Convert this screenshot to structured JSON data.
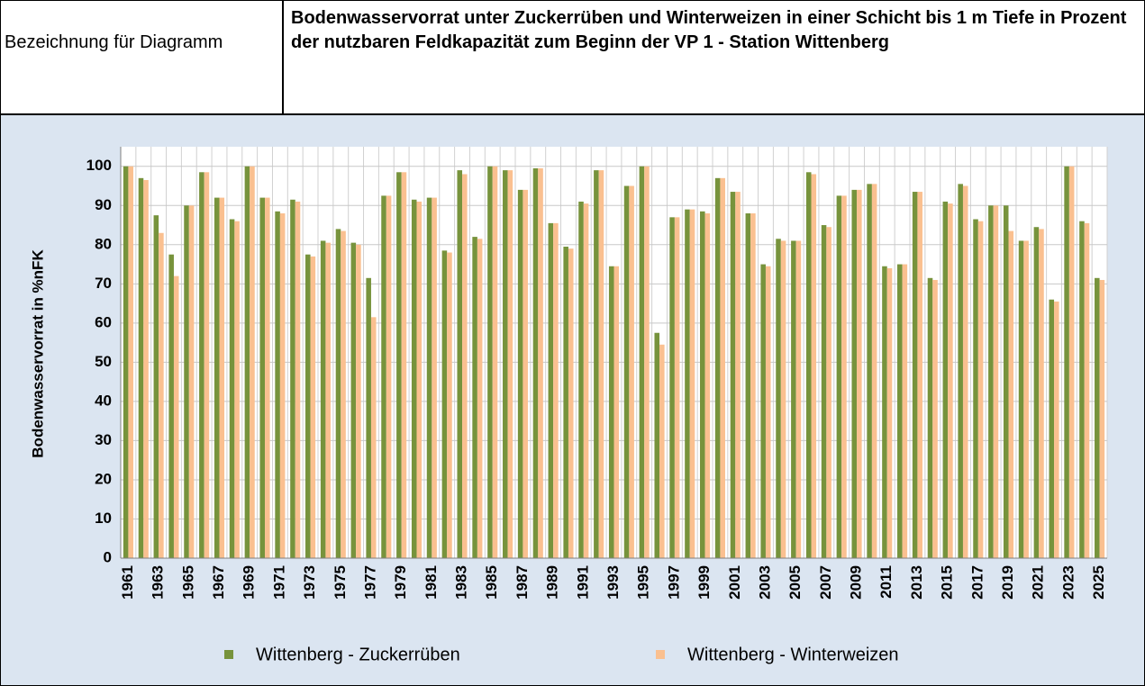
{
  "header": {
    "label": "Bezeichnung für Diagramm",
    "title": "Bodenwasservorrat unter Zuckerrüben und Winterweizen in einer Schicht bis 1 m Tiefe in Prozent der nutzbaren Feldkapazität zum Beginn der VP 1 - Station Wittenberg"
  },
  "chart_data": {
    "type": "bar",
    "y_label": "Bodenwasservorrat in %nFK",
    "categories": [
      "1961",
      null,
      "1963",
      null,
      "1965",
      null,
      "1967",
      null,
      "1969",
      null,
      "1971",
      null,
      "1973",
      null,
      "1975",
      null,
      "1977",
      null,
      "1979",
      null,
      "1981",
      null,
      "1983",
      null,
      "1985",
      null,
      "1987",
      null,
      "1989",
      null,
      "1991",
      null,
      "1993",
      null,
      "1995",
      null,
      "1997",
      null,
      "1999",
      null,
      "2001",
      null,
      "2003",
      null,
      "2005",
      null,
      "2007",
      null,
      "2009",
      null,
      "2011",
      null,
      "2013",
      null,
      "2015",
      null,
      "2017",
      null,
      "2019",
      null,
      "2021",
      null,
      "2023",
      null,
      "2025"
    ],
    "series": [
      {
        "name": "Wittenberg - Zuckerrüben",
        "color": "#77933c",
        "values": [
          100,
          97,
          87.5,
          77.5,
          90,
          98.5,
          92,
          86.5,
          100,
          92,
          88.5,
          91.5,
          77.5,
          81,
          84,
          80.5,
          71.5,
          92.5,
          98.5,
          91.5,
          92,
          78.5,
          99,
          82,
          100,
          99,
          94,
          99.5,
          85.5,
          79.5,
          91,
          99,
          74.5,
          95,
          100,
          57.5,
          87,
          89,
          88.5,
          97,
          93.5,
          88,
          75,
          81.5,
          81,
          98.5,
          85,
          92.5,
          94,
          95.5,
          74.5,
          75,
          93.5,
          71.5,
          91,
          95.5,
          86.5,
          90,
          90,
          81,
          84.5,
          66,
          100,
          86,
          71.5
        ]
      },
      {
        "name": "Wittenberg - Winterweizen",
        "color": "#fac090",
        "values": [
          100,
          96.5,
          83,
          72,
          90,
          98.5,
          92,
          86,
          100,
          92,
          88,
          91,
          77,
          80.5,
          83.5,
          80,
          61.5,
          92.5,
          98.5,
          91,
          92,
          78,
          98,
          81.5,
          100,
          99,
          94,
          99.5,
          85.5,
          79,
          90.5,
          99,
          74.5,
          95,
          100,
          54.5,
          87,
          89,
          88,
          97,
          93.5,
          88,
          74.5,
          81,
          81,
          98,
          84.5,
          92.5,
          94,
          95.5,
          74,
          75,
          93.5,
          71,
          90.5,
          95,
          86,
          90,
          83.5,
          81,
          84,
          65.5,
          100,
          85.5,
          71
        ]
      }
    ],
    "ylim": [
      0,
      105
    ],
    "yticks": [
      0,
      10,
      20,
      30,
      40,
      50,
      60,
      70,
      80,
      90,
      100
    ],
    "grid": true
  }
}
